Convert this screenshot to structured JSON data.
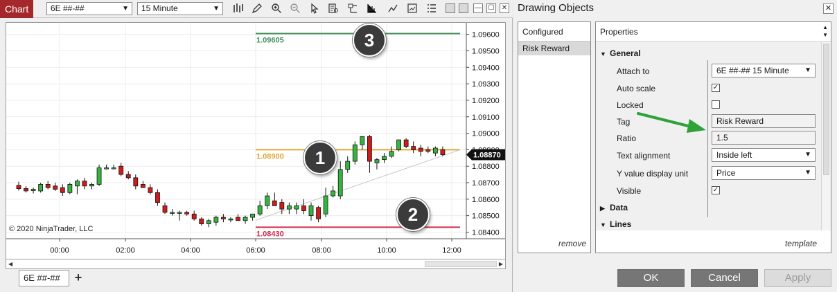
{
  "toolbar": {
    "chart_tab": "Chart",
    "instrument": "6E ##-##",
    "interval": "15 Minute",
    "icons": [
      "bar-type-icon",
      "pencil-icon",
      "zoom-in-icon",
      "zoom-out-icon",
      "pointer-icon",
      "data-box-icon",
      "properties-icon",
      "strategy-icon",
      "indicator-icon",
      "chart-trader-icon",
      "menu-icon"
    ]
  },
  "chart": {
    "copyright": "© 2020 NinjaTrader, LLC",
    "instrument_tab": "6E ##-##",
    "add_tab": "+",
    "x_ticks": [
      "00:00",
      "02:00",
      "04:00",
      "06:00",
      "08:00",
      "10:00",
      "12:00"
    ],
    "y_ticks": [
      "1.09600",
      "1.09500",
      "1.09400",
      "1.09300",
      "1.09200",
      "1.09100",
      "1.09000",
      "1.08900",
      "1.08800",
      "1.08700",
      "1.08600",
      "1.08500",
      "1.08400"
    ],
    "current_price": "1.08870",
    "target_label": "1.09605",
    "entry_label": "1.08900",
    "stop_label": "1.08430",
    "badges": [
      "1",
      "2",
      "3"
    ],
    "colors": {
      "target": "#3f8f5a",
      "entry": "#e0a634",
      "stop": "#d02c4a",
      "up": "#35b540",
      "down": "#d01b1b"
    }
  },
  "chart_data": {
    "type": "candlestick",
    "y_range": [
      1.0836,
      1.0967
    ],
    "candles": [
      {
        "o": 1.08684,
        "h": 1.08706,
        "l": 1.08652,
        "c": 1.08664
      },
      {
        "o": 1.08665,
        "h": 1.0868,
        "l": 1.0864,
        "c": 1.0865
      },
      {
        "o": 1.08652,
        "h": 1.0867,
        "l": 1.08635,
        "c": 1.0866
      },
      {
        "o": 1.0865,
        "h": 1.087,
        "l": 1.0864,
        "c": 1.0869
      },
      {
        "o": 1.0869,
        "h": 1.0871,
        "l": 1.0866,
        "c": 1.0867
      },
      {
        "o": 1.0868,
        "h": 1.087,
        "l": 1.0865,
        "c": 1.0866
      },
      {
        "o": 1.0867,
        "h": 1.0869,
        "l": 1.0862,
        "c": 1.0864
      },
      {
        "o": 1.0864,
        "h": 1.087,
        "l": 1.0863,
        "c": 1.0869
      },
      {
        "o": 1.0868,
        "h": 1.0872,
        "l": 1.0863,
        "c": 1.0871
      },
      {
        "o": 1.0871,
        "h": 1.0873,
        "l": 1.0866,
        "c": 1.0868
      },
      {
        "o": 1.0868,
        "h": 1.087,
        "l": 1.0866,
        "c": 1.0869
      },
      {
        "o": 1.0869,
        "h": 1.0881,
        "l": 1.0868,
        "c": 1.0879
      },
      {
        "o": 1.0879,
        "h": 1.0881,
        "l": 1.0878,
        "c": 1.0879
      },
      {
        "o": 1.0879,
        "h": 1.0881,
        "l": 1.0878,
        "c": 1.0879
      },
      {
        "o": 1.088,
        "h": 1.0882,
        "l": 1.0874,
        "c": 1.0875
      },
      {
        "o": 1.0875,
        "h": 1.0877,
        "l": 1.0872,
        "c": 1.0873
      },
      {
        "o": 1.0873,
        "h": 1.0875,
        "l": 1.0866,
        "c": 1.0868
      },
      {
        "o": 1.0869,
        "h": 1.0871,
        "l": 1.0867,
        "c": 1.0867
      },
      {
        "o": 1.0867,
        "h": 1.0869,
        "l": 1.0863,
        "c": 1.0864
      },
      {
        "o": 1.0864,
        "h": 1.0866,
        "l": 1.0856,
        "c": 1.0858
      },
      {
        "o": 1.0856,
        "h": 1.0858,
        "l": 1.0851,
        "c": 1.0852
      },
      {
        "o": 1.0852,
        "h": 1.0854,
        "l": 1.085,
        "c": 1.0852
      },
      {
        "o": 1.0852,
        "h": 1.0853,
        "l": 1.0847,
        "c": 1.0852
      },
      {
        "o": 1.0852,
        "h": 1.0853,
        "l": 1.085,
        "c": 1.0851
      },
      {
        "o": 1.0851,
        "h": 1.0853,
        "l": 1.0847,
        "c": 1.0848
      },
      {
        "o": 1.0848,
        "h": 1.0849,
        "l": 1.0844,
        "c": 1.0845
      },
      {
        "o": 1.0845,
        "h": 1.0848,
        "l": 1.0843,
        "c": 1.0847
      },
      {
        "o": 1.0846,
        "h": 1.085,
        "l": 1.0844,
        "c": 1.0849
      },
      {
        "o": 1.0849,
        "h": 1.0851,
        "l": 1.0846,
        "c": 1.0848
      },
      {
        "o": 1.0848,
        "h": 1.0849,
        "l": 1.0846,
        "c": 1.0848
      },
      {
        "o": 1.0849,
        "h": 1.0851,
        "l": 1.0847,
        "c": 1.0847
      },
      {
        "o": 1.0847,
        "h": 1.085,
        "l": 1.0845,
        "c": 1.0849
      },
      {
        "o": 1.0849,
        "h": 1.0851,
        "l": 1.0847,
        "c": 1.0851
      },
      {
        "o": 1.0851,
        "h": 1.0859,
        "l": 1.085,
        "c": 1.0856
      },
      {
        "o": 1.0856,
        "h": 1.0864,
        "l": 1.0854,
        "c": 1.0862
      },
      {
        "o": 1.0859,
        "h": 1.0864,
        "l": 1.0857,
        "c": 1.0856
      },
      {
        "o": 1.0858,
        "h": 1.086,
        "l": 1.0851,
        "c": 1.0854
      },
      {
        "o": 1.0854,
        "h": 1.0858,
        "l": 1.0851,
        "c": 1.0856
      },
      {
        "o": 1.0854,
        "h": 1.0858,
        "l": 1.0851,
        "c": 1.0856
      },
      {
        "o": 1.0856,
        "h": 1.086,
        "l": 1.0851,
        "c": 1.0853
      },
      {
        "o": 1.085,
        "h": 1.0858,
        "l": 1.0847,
        "c": 1.0856
      },
      {
        "o": 1.0855,
        "h": 1.0856,
        "l": 1.0846,
        "c": 1.0848
      },
      {
        "o": 1.0851,
        "h": 1.0867,
        "l": 1.0849,
        "c": 1.0862
      },
      {
        "o": 1.0862,
        "h": 1.0868,
        "l": 1.0861,
        "c": 1.0865
      },
      {
        "o": 1.0862,
        "h": 1.0883,
        "l": 1.086,
        "c": 1.0878
      },
      {
        "o": 1.0878,
        "h": 1.0886,
        "l": 1.0876,
        "c": 1.0883
      },
      {
        "o": 1.0883,
        "h": 1.0895,
        "l": 1.0881,
        "c": 1.0893
      },
      {
        "o": 1.0893,
        "h": 1.0898,
        "l": 1.089,
        "c": 1.0898
      },
      {
        "o": 1.0898,
        "h": 1.0899,
        "l": 1.0876,
        "c": 1.0883
      },
      {
        "o": 1.0882,
        "h": 1.0885,
        "l": 1.0878,
        "c": 1.0884
      },
      {
        "o": 1.0884,
        "h": 1.0888,
        "l": 1.0882,
        "c": 1.0886
      },
      {
        "o": 1.0886,
        "h": 1.0892,
        "l": 1.0885,
        "c": 1.0889
      },
      {
        "o": 1.089,
        "h": 1.0896,
        "l": 1.0889,
        "c": 1.0896
      },
      {
        "o": 1.0896,
        "h": 1.0897,
        "l": 1.0891,
        "c": 1.0892
      },
      {
        "o": 1.0892,
        "h": 1.0895,
        "l": 1.0888,
        "c": 1.089
      },
      {
        "o": 1.0891,
        "h": 1.0893,
        "l": 1.0886,
        "c": 1.0889
      },
      {
        "o": 1.089,
        "h": 1.0892,
        "l": 1.0888,
        "c": 1.0889
      },
      {
        "o": 1.0888,
        "h": 1.0892,
        "l": 1.0886,
        "c": 1.0891
      },
      {
        "o": 1.089,
        "h": 1.0892,
        "l": 1.0886,
        "c": 1.0887
      }
    ]
  },
  "dialog": {
    "title": "Drawing Objects",
    "close": "✕",
    "configured_header": "Configured",
    "configured_item": "Risk Reward",
    "remove": "remove",
    "properties_header": "Properties",
    "template": "template",
    "groups": {
      "general": "General",
      "data": "Data",
      "lines": "Lines"
    },
    "props": {
      "attach_to": {
        "label": "Attach to",
        "value": "6E ##-## 15 Minute"
      },
      "auto_scale": {
        "label": "Auto scale",
        "checked": true
      },
      "locked": {
        "label": "Locked",
        "checked": false
      },
      "tag": {
        "label": "Tag",
        "value": "Risk Reward"
      },
      "ratio": {
        "label": "Ratio",
        "value": "1.5"
      },
      "text_alignment": {
        "label": "Text alignment",
        "value": "Inside left"
      },
      "y_value_unit": {
        "label": "Y value display unit",
        "value": "Price"
      },
      "visible": {
        "label": "Visible",
        "checked": true
      }
    },
    "buttons": {
      "ok": "OK",
      "cancel": "Cancel",
      "apply": "Apply"
    }
  }
}
